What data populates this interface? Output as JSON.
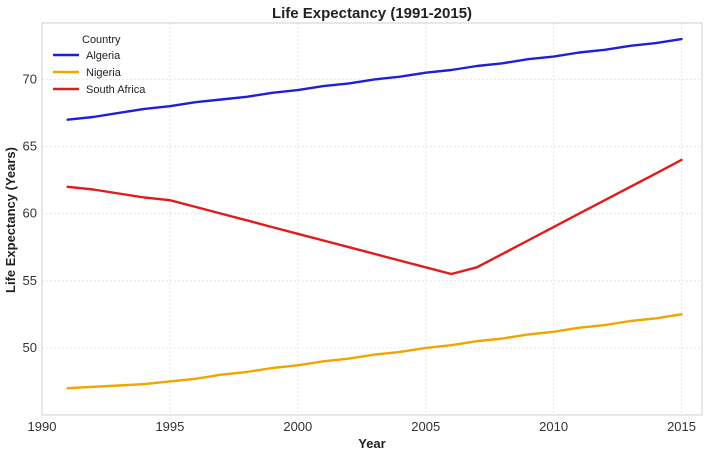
{
  "chart_data": {
    "type": "line",
    "title": "Life Expectancy (1991-2015)",
    "xlabel": "Year",
    "ylabel": "Life Expectancy (Years)",
    "xlim": [
      1990,
      2015.8
    ],
    "ylim": [
      45,
      74.2
    ],
    "xticks": [
      1990,
      1995,
      2000,
      2005,
      2010,
      2015
    ],
    "yticks": [
      50,
      55,
      60,
      65,
      70
    ],
    "grid": true,
    "legend": {
      "title": "Country",
      "position": "top-left"
    },
    "x": [
      1991,
      1992,
      1993,
      1994,
      1995,
      1996,
      1997,
      1998,
      1999,
      2000,
      2001,
      2002,
      2003,
      2004,
      2005,
      2006,
      2007,
      2008,
      2009,
      2010,
      2011,
      2012,
      2013,
      2014,
      2015
    ],
    "series": [
      {
        "name": "Algeria",
        "color": "#1f1fd6",
        "values": [
          67.0,
          67.2,
          67.5,
          67.8,
          68.0,
          68.3,
          68.5,
          68.7,
          69.0,
          69.2,
          69.5,
          69.7,
          70.0,
          70.2,
          70.5,
          70.7,
          71.0,
          71.2,
          71.5,
          71.7,
          72.0,
          72.2,
          72.5,
          72.7,
          73.0
        ]
      },
      {
        "name": "Nigeria",
        "color": "#f0a500",
        "values": [
          47.0,
          47.1,
          47.2,
          47.3,
          47.5,
          47.7,
          48.0,
          48.2,
          48.5,
          48.7,
          49.0,
          49.2,
          49.5,
          49.7,
          50.0,
          50.2,
          50.5,
          50.7,
          51.0,
          51.2,
          51.5,
          51.7,
          52.0,
          52.2,
          52.5
        ]
      },
      {
        "name": "South Africa",
        "color": "#e01b1b",
        "values": [
          62.0,
          61.8,
          61.5,
          61.2,
          61.0,
          60.5,
          60.0,
          59.5,
          59.0,
          58.5,
          58.0,
          57.5,
          57.0,
          56.5,
          56.0,
          55.5,
          56.0,
          57.0,
          58.0,
          59.0,
          60.0,
          61.0,
          62.0,
          63.0,
          64.0
        ]
      }
    ]
  }
}
